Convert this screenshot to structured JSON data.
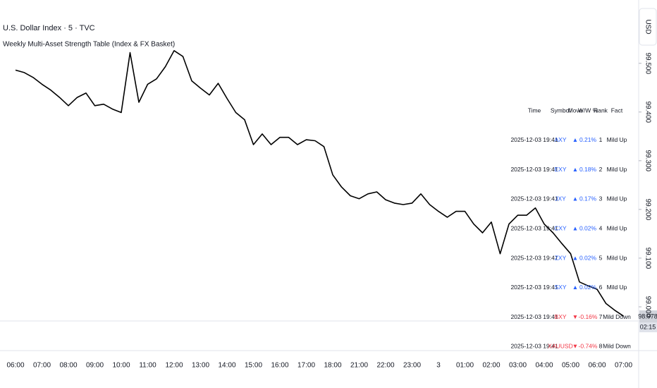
{
  "chart_data": {
    "type": "line",
    "title": "U.S. Dollar Index · 5 · TVC",
    "subtitle": "Weekly Multi-Asset Strength Table (Index & FX Basket)",
    "currency": "USD",
    "last_price_label": "98.978",
    "countdown": "02:15",
    "color": "#000000",
    "categories": [
      "06:00",
      null,
      null,
      "07:00",
      null,
      null,
      "08:00",
      null,
      null,
      "09:00",
      null,
      null,
      "10:00",
      null,
      null,
      "11:00",
      null,
      null,
      "12:00",
      null,
      null,
      "13:00",
      null,
      null,
      "14:00",
      null,
      null,
      "15:00",
      null,
      null,
      "16:00",
      null,
      null,
      "17:00",
      null,
      null,
      "18:00",
      null,
      null,
      "21:00",
      null,
      null,
      "22:00",
      null,
      null,
      "23:00",
      null,
      null,
      "3",
      null,
      null,
      "01:00",
      null,
      null,
      "02:00",
      null,
      null,
      "03:00",
      null,
      null,
      "04:00",
      null,
      null,
      "05:00",
      null,
      null,
      "06:00",
      null,
      null,
      "07:00"
    ],
    "values": [
      99.486,
      99.481,
      99.471,
      99.457,
      99.445,
      99.43,
      99.413,
      99.43,
      99.439,
      99.413,
      99.416,
      99.406,
      99.399,
      99.522,
      99.42,
      99.457,
      99.468,
      99.493,
      99.526,
      99.514,
      99.464,
      99.449,
      99.435,
      99.459,
      99.428,
      99.399,
      99.384,
      99.333,
      99.355,
      99.333,
      99.348,
      99.348,
      99.333,
      99.343,
      99.341,
      99.329,
      99.271,
      99.246,
      99.228,
      99.222,
      99.232,
      99.236,
      99.22,
      99.213,
      99.21,
      99.213,
      99.232,
      99.21,
      99.196,
      99.184,
      99.196,
      99.196,
      99.17,
      99.152,
      99.174,
      99.109,
      99.17,
      99.188,
      99.188,
      99.203,
      99.17,
      99.152,
      99.13,
      99.109,
      99.051,
      99.043,
      99.036,
      99.007,
      98.993,
      98.981
    ],
    "ylim": [
      98.913,
      99.63
    ],
    "yticks": [
      {
        "value": 99.0,
        "label": "99.000"
      },
      {
        "value": 99.1,
        "label": "99.100"
      },
      {
        "value": 99.2,
        "label": "99.200"
      },
      {
        "value": 99.3,
        "label": "99.300"
      },
      {
        "value": 99.4,
        "label": "99.400"
      },
      {
        "value": 99.5,
        "label": "99.500"
      }
    ],
    "grid": false
  },
  "table": {
    "columns": [
      "Time",
      "Symbol",
      "Move",
      "W/W %",
      "Rank",
      "Fact"
    ],
    "rows": [
      {
        "color": "#2962ff",
        "cells": [
          "2025-12-03 19:41",
          "AXY",
          "▲",
          "0.21%",
          "1",
          "Mild Up"
        ]
      },
      {
        "color": "#2962ff",
        "cells": [
          "2025-12-03 19:41",
          "EXY",
          "▲",
          "0.18%",
          "2",
          "Mild Up"
        ]
      },
      {
        "color": "#2962ff",
        "cells": [
          "2025-12-03 19:41",
          "JXY",
          "▲",
          "0.17%",
          "3",
          "Mild Up"
        ]
      },
      {
        "color": "#2962ff",
        "cells": [
          "2025-12-03 19:41",
          "CXY",
          "▲",
          "0.02%",
          "4",
          "Mild Up"
        ]
      },
      {
        "color": "#2962ff",
        "cells": [
          "2025-12-03 19:41",
          "ZXY",
          "▲",
          "0.02%",
          "5",
          "Mild Up"
        ]
      },
      {
        "color": "#2962ff",
        "cells": [
          "2025-12-03 19:41",
          "SXY",
          "▲",
          "0.02%",
          "6",
          "Mild Up"
        ]
      },
      {
        "color": "#f23645",
        "cells": [
          "2025-12-03 19:41",
          "BXY",
          "▼",
          "-0.16%",
          "7",
          "Mild Down"
        ]
      },
      {
        "color": "#f23645",
        "cells": [
          "2025-12-03 19:41",
          "XAUUSD",
          "▼",
          "-0.74%",
          "8",
          "Mild Down"
        ]
      }
    ]
  }
}
